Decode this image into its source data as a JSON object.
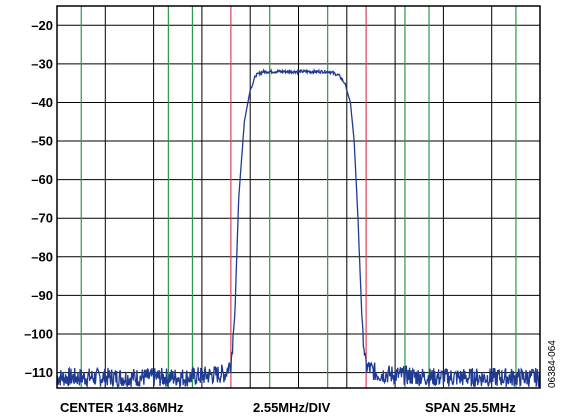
{
  "chart_data": {
    "type": "line",
    "y_ticks": [
      -20,
      -30,
      -40,
      -50,
      -60,
      -70,
      -80,
      -90,
      -100,
      -110
    ],
    "y_tick_labels": [
      "–20",
      "–30",
      "–40",
      "–50",
      "–60",
      "–70",
      "–80",
      "–90",
      "–100",
      "–110"
    ],
    "ylim": [
      -114,
      -15
    ],
    "xlim": [
      131.11,
      156.61
    ],
    "x_divisions": 10,
    "grid": true,
    "bottom_labels": {
      "center": "CENTER 143.86MHz",
      "div": "2.55MHz/DIV",
      "span": "SPAN 25.5MHz"
    },
    "figure_id": "06384-064",
    "colors": {
      "trace": "#1f3a93",
      "green_markers": "#2a9a4a",
      "red_markers": "#e0405a",
      "grid": "#000000"
    },
    "green_marker_x_mhz": [
      132.39,
      136.99,
      138.26,
      142.34,
      145.4,
      149.48,
      150.75,
      155.34
    ],
    "red_marker_x_mhz": [
      140.29,
      147.43
    ],
    "series": [
      {
        "x": [
          131.11,
          135.0,
          138.0,
          140.0,
          140.3,
          140.5,
          140.7,
          141.0,
          141.3,
          141.6,
          142.0,
          143.0,
          144.0,
          145.0,
          145.5,
          146.0,
          146.3,
          146.6,
          146.8,
          147.0,
          147.2,
          147.4,
          148.0,
          151.0,
          156.61
        ],
        "y": [
          -111,
          -111,
          -111,
          -110,
          -107,
          -95,
          -65,
          -45,
          -37,
          -33,
          -32,
          -32,
          -32,
          -32,
          -32,
          -33,
          -35,
          -40,
          -50,
          -70,
          -95,
          -108,
          -110,
          -111,
          -111
        ]
      }
    ]
  }
}
